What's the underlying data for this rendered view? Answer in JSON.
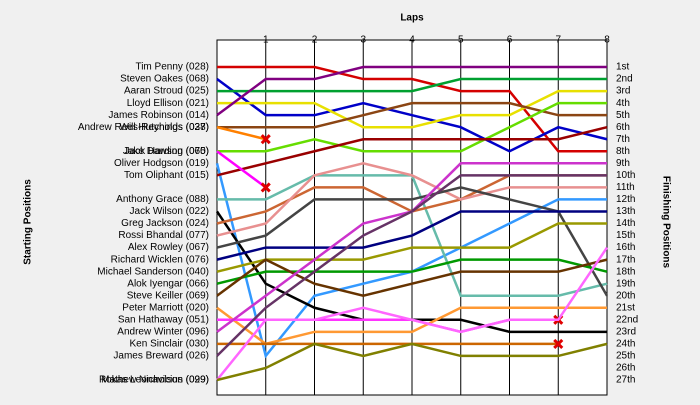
{
  "chart_data": {
    "type": "lap",
    "title": "Laps",
    "y_label": "Starting Positions",
    "y2_label": "Finishing Positions",
    "x": [
      0,
      1,
      2,
      3,
      4,
      5,
      6,
      7,
      8
    ],
    "xlim": [
      0,
      8
    ],
    "xticks": [
      1,
      2,
      3,
      4,
      5,
      6,
      7,
      8
    ],
    "ylim": [
      1,
      27
    ],
    "finishing_positions": [
      "1st",
      "2nd",
      "3rd",
      "4th",
      "5th",
      "6th",
      "7th",
      "8th",
      "9th",
      "10th",
      "11th",
      "12th",
      "13th",
      "14th",
      "15th",
      "16th",
      "17th",
      "18th",
      "19th",
      "20th",
      "21st",
      "22nd",
      "23rd",
      "24th",
      "25th",
      "26th",
      "27th"
    ],
    "series": [
      {
        "name": "Tim Penny (028)",
        "color": "#d40000",
        "values": [
          1,
          1,
          1,
          2,
          2,
          3,
          3,
          8,
          8
        ]
      },
      {
        "name": "Steven Oakes (068)",
        "color": "#0000c8",
        "values": [
          2,
          5,
          5,
          4,
          5,
          6,
          8,
          6,
          7
        ]
      },
      {
        "name": "Aaran Stroud (025)",
        "color": "#00a030",
        "values": [
          3,
          3,
          3,
          3,
          3,
          2,
          2,
          2,
          2
        ]
      },
      {
        "name": "Lloyd Ellison (021)",
        "color": "#e8e000",
        "values": [
          4,
          4,
          4,
          6,
          6,
          5,
          5,
          3,
          3
        ]
      },
      {
        "name": "James Robinson (014)",
        "color": "#800080",
        "values": [
          5,
          2,
          2,
          1,
          1,
          1,
          1,
          1,
          1
        ]
      },
      {
        "name": "Will Hutchings (027)",
        "color": "#8b4513",
        "values": [
          6,
          6,
          6,
          5,
          4,
          4,
          4,
          5,
          5
        ]
      },
      {
        "name": "Andrew Rees-Reynolds (038)",
        "color": "#ff8000",
        "values": [
          6,
          7,
          null,
          null,
          null,
          null,
          null,
          null,
          null
        ]
      },
      {
        "name": "Jack Harding (065)",
        "color": "#66dd00",
        "values": [
          8,
          8,
          7,
          8,
          8,
          8,
          6,
          4,
          4
        ]
      },
      {
        "name": "Oliver Hodgson (019)",
        "color": "#3399ff",
        "values": [
          9,
          25,
          20,
          19,
          18,
          16,
          14,
          12,
          12
        ]
      },
      {
        "name": "Tom Oliphant (015)",
        "color": "#990000",
        "values": [
          10,
          9,
          8,
          7,
          7,
          7,
          7,
          7,
          6
        ]
      },
      {
        "name": "Jake Dawson (070)",
        "color": "#ff00ff",
        "values": [
          8,
          11,
          null,
          null,
          null,
          null,
          null,
          null,
          null
        ]
      },
      {
        "name": "Anthony Grace (088)",
        "color": "#66bbaa",
        "values": [
          12,
          12,
          10,
          10,
          10,
          20,
          20,
          20,
          19
        ]
      },
      {
        "name": "Jack Wilson (022)",
        "color": "#000000",
        "values": [
          13,
          19,
          21,
          22,
          22,
          22,
          23,
          23,
          23
        ]
      },
      {
        "name": "Greg Jackson (024)",
        "color": "#cc6633",
        "values": [
          14,
          13,
          11,
          11,
          13,
          12,
          10,
          10,
          10
        ]
      },
      {
        "name": "Rossi Bhandal (077)",
        "color": "#e89090",
        "values": [
          15,
          14,
          10,
          9,
          10,
          12,
          11,
          11,
          11
        ]
      },
      {
        "name": "Alex Rowley (067)",
        "color": "#444444",
        "values": [
          16,
          15,
          12,
          12,
          12,
          11,
          12,
          13,
          20
        ]
      },
      {
        "name": "Richard Wicklen (076)",
        "color": "#000080",
        "values": [
          17,
          16,
          16,
          16,
          15,
          13,
          13,
          13,
          13
        ]
      },
      {
        "name": "Michael Sanderson (040)",
        "color": "#999900",
        "values": [
          18,
          17,
          17,
          17,
          16,
          16,
          16,
          14,
          14
        ]
      },
      {
        "name": "Alok Iyengar (066)",
        "color": "#009900",
        "values": [
          19,
          18,
          18,
          18,
          18,
          17,
          17,
          17,
          18
        ]
      },
      {
        "name": "Steve Keiller (069)",
        "color": "#663300",
        "values": [
          20,
          17,
          19,
          20,
          19,
          18,
          18,
          18,
          17
        ]
      },
      {
        "name": "Peter Marriott (020)",
        "color": "#ff9933",
        "values": [
          21,
          24,
          23,
          23,
          23,
          21,
          21,
          21,
          21
        ]
      },
      {
        "name": "San Hathaway (051)",
        "color": "#ff33ff",
        "values": [
          22,
          22,
          22,
          22,
          22,
          23,
          22,
          22,
          null
        ]
      },
      {
        "name": "Andrew Winter (096)",
        "color": "#cc33cc",
        "values": [
          23,
          20,
          17,
          14,
          13,
          9,
          9,
          9,
          9
        ]
      },
      {
        "name": "Ken Sinclair (030)",
        "color": "#cc6600",
        "values": [
          24,
          24,
          24,
          24,
          24,
          24,
          24,
          24,
          null
        ]
      },
      {
        "name": "James Breward (026)",
        "color": "#663366",
        "values": [
          25,
          21,
          18,
          15,
          13,
          10,
          10,
          10,
          10
        ]
      },
      {
        "name": "Rokas Leonavicius (099)",
        "color": "#ff66ff",
        "values": [
          27,
          22,
          22,
          21,
          22,
          23,
          22,
          22,
          16
        ]
      },
      {
        "name": "Mathew Nicholson (029)",
        "color": "#808000",
        "values": [
          27,
          26,
          24,
          25,
          24,
          25,
          25,
          25,
          24
        ]
      }
    ]
  }
}
